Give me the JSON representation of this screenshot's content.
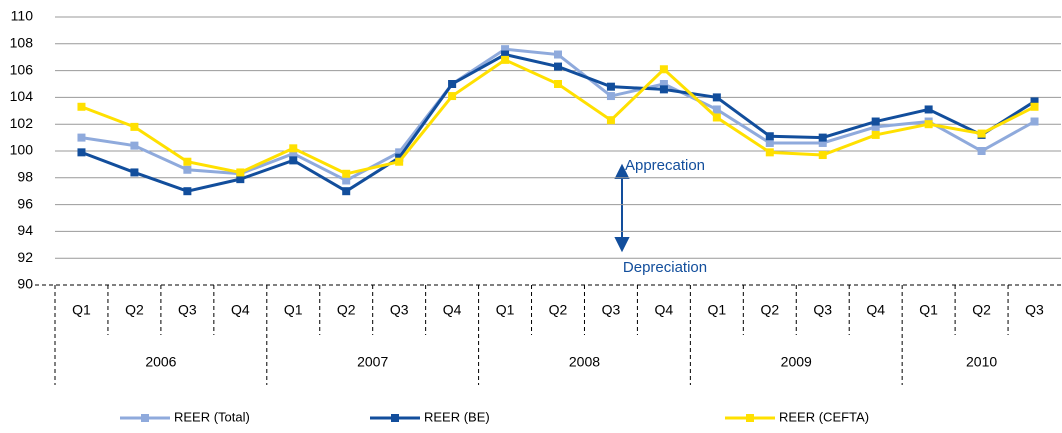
{
  "chart_data": {
    "type": "line",
    "years": [
      {
        "label": "2006",
        "quarters": [
          "Q1",
          "Q2",
          "Q3",
          "Q4"
        ]
      },
      {
        "label": "2007",
        "quarters": [
          "Q1",
          "Q2",
          "Q3",
          "Q4"
        ]
      },
      {
        "label": "2008",
        "quarters": [
          "Q1",
          "Q2",
          "Q3",
          "Q4"
        ]
      },
      {
        "label": "2009",
        "quarters": [
          "Q1",
          "Q2",
          "Q3",
          "Q4"
        ]
      },
      {
        "label": "2010",
        "quarters": [
          "Q1",
          "Q2",
          "Q3"
        ]
      }
    ],
    "series": [
      {
        "name": "REER (Total)",
        "color": "#8faadc",
        "values": [
          101,
          100.4,
          98.6,
          98.3,
          99.8,
          97.8,
          99.9,
          105,
          107.6,
          107.2,
          104.1,
          105,
          103.1,
          100.6,
          100.6,
          101.8,
          102.2,
          100,
          102.2
        ]
      },
      {
        "name": "REER (BE)",
        "color": "#124e9c",
        "values": [
          99.9,
          98.4,
          97,
          97.9,
          99.3,
          97,
          99.5,
          105,
          107.2,
          106.3,
          104.8,
          104.6,
          104,
          101.1,
          101,
          102.2,
          103.1,
          101.2,
          103.7
        ]
      },
      {
        "name": "REER (CEFTA)",
        "color": "#ffe000",
        "values": [
          103.3,
          101.8,
          99.2,
          98.4,
          100.2,
          98.3,
          99.2,
          104.1,
          106.8,
          105,
          102.3,
          106.1,
          102.5,
          99.9,
          99.7,
          101.2,
          102,
          101.3,
          103.3
        ]
      }
    ],
    "ylim": [
      90,
      110
    ],
    "yticks": [
      90,
      92,
      94,
      96,
      98,
      100,
      102,
      104,
      106,
      108,
      110
    ],
    "grid": true,
    "annotations": [
      "Apprecation",
      "Depreciation"
    ],
    "legend": "bottom"
  }
}
